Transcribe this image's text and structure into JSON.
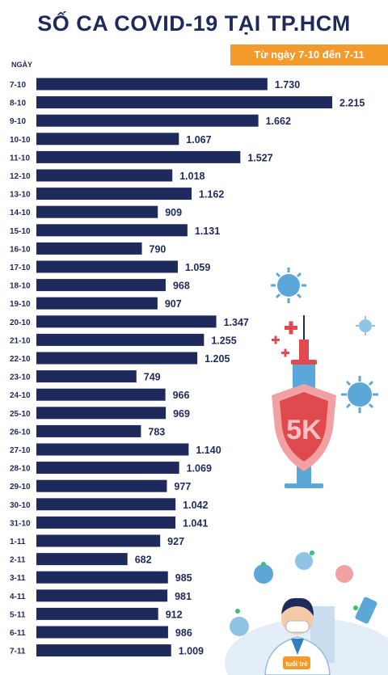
{
  "header": {
    "title": "SỐ CA COVID-19 TẠI TP.HCM",
    "subtitle": "Từ ngày 7-10 đến 7-11"
  },
  "chart_data": {
    "type": "bar",
    "orientation": "horizontal",
    "title": "SỐ CA COVID-19 TẠI TP.HCM",
    "subtitle": "Từ ngày 7-10 đến 7-11",
    "ylabel": "NGÀY",
    "xlabel": "",
    "bar_color": "#1f2a5c",
    "categories": [
      "7-10",
      "8-10",
      "9-10",
      "10-10",
      "11-10",
      "12-10",
      "13-10",
      "14-10",
      "15-10",
      "16-10",
      "17-10",
      "18-10",
      "19-10",
      "20-10",
      "21-10",
      "22-10",
      "23-10",
      "24-10",
      "25-10",
      "26-10",
      "27-10",
      "28-10",
      "29-10",
      "30-10",
      "31-10",
      "1-11",
      "2-11",
      "3-11",
      "4-11",
      "5-11",
      "6-11",
      "7-11"
    ],
    "values": [
      1730,
      2215,
      1662,
      1067,
      1527,
      1018,
      1162,
      909,
      1131,
      790,
      1059,
      968,
      907,
      1347,
      1255,
      1205,
      749,
      966,
      969,
      783,
      1140,
      1069,
      977,
      1042,
      1041,
      927,
      682,
      985,
      981,
      912,
      986,
      1009
    ],
    "value_labels": [
      "1.730",
      "2.215",
      "1.662",
      "1.067",
      "1.527",
      "1.018",
      "1.162",
      "909",
      "1.131",
      "790",
      "1.059",
      "968",
      "907",
      "1.347",
      "1.255",
      "1.205",
      "749",
      "966",
      "969",
      "783",
      "1.140",
      "1.069",
      "977",
      "1.042",
      "1.041",
      "927",
      "682",
      "985",
      "981",
      "912",
      "986",
      "1.009"
    ],
    "grid": false,
    "legend": "none"
  },
  "decor": {
    "badge_text": "5K",
    "logo_text": "tuổi trẻ",
    "colors": {
      "navy": "#1f2a5c",
      "orange": "#f39a2a",
      "red": "#e04a4f",
      "blue": "#5aa7d8"
    }
  }
}
